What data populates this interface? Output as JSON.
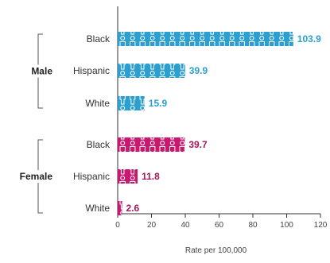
{
  "chart_data": {
    "type": "bar",
    "orientation": "horizontal",
    "xlabel": "Rate per 100,000",
    "xlim": [
      0,
      120
    ],
    "xticks": [
      "0",
      "20",
      "40",
      "60",
      "80",
      "100",
      "120"
    ],
    "groups": [
      {
        "name": "Male",
        "color": "#2a9fd0",
        "label_color": "#2a9fd0",
        "bars": [
          {
            "category": "Black",
            "value": 103.9,
            "label": "103.9"
          },
          {
            "category": "Hispanic",
            "value": 39.9,
            "label": "39.9"
          },
          {
            "category": "White",
            "value": 15.9,
            "label": "15.9"
          }
        ]
      },
      {
        "name": "Female",
        "color": "#c8186f",
        "label_color": "#a3195b",
        "bars": [
          {
            "category": "Black",
            "value": 39.7,
            "label": "39.7"
          },
          {
            "category": "Hispanic",
            "value": 11.8,
            "label": "11.8"
          },
          {
            "category": "White",
            "value": 2.6,
            "label": "2.6"
          }
        ]
      }
    ],
    "icon": "person-figure-icon"
  }
}
